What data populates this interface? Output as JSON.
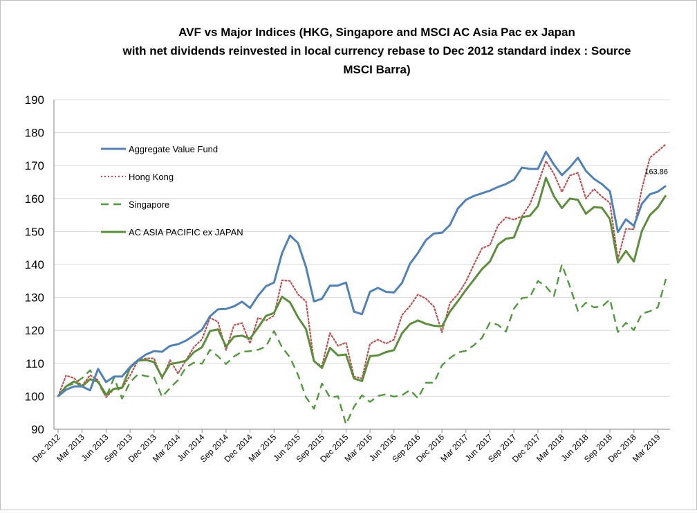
{
  "chart_data": {
    "type": "line",
    "title_lines": [
      "AVF vs Major  Indices (HKG, Singapore and MSCI AC Asia Pac ex Japan",
      "with net dividends reinvested in local currency rebase to Dec 2012 standard  index : Source",
      "MSCI Barra)"
    ],
    "ylim": [
      90,
      190
    ],
    "yticks": [
      90,
      100,
      110,
      120,
      130,
      140,
      150,
      160,
      170,
      180,
      190
    ],
    "grid": "horizontal",
    "legend_position": "upper-left",
    "x": [
      "Dec 2012",
      "Jan 2013",
      "Feb 2013",
      "Mar 2013",
      "Apr 2013",
      "May 2013",
      "Jun 2013",
      "Jul 2013",
      "Aug 2013",
      "Sep 2013",
      "Oct 2013",
      "Nov 2013",
      "Dec 2013",
      "Jan 2014",
      "Feb 2014",
      "Mar 2014",
      "Apr 2014",
      "May 2014",
      "Jun 2014",
      "Jul 2014",
      "Aug 2014",
      "Sep 2014",
      "Oct 2014",
      "Nov 2014",
      "Dec 2014",
      "Jan 2015",
      "Feb 2015",
      "Mar 2015",
      "Apr 2015",
      "May 2015",
      "Jun 2015",
      "Jul 2015",
      "Aug 2015",
      "Sep 2015",
      "Oct 2015",
      "Nov 2015",
      "Dec 2015",
      "Jan 2016",
      "Feb 2016",
      "Mar 2016",
      "Apr 2016",
      "May 2016",
      "Jun 2016",
      "Jul 2016",
      "Aug 2016",
      "Sep 2016",
      "Oct 2016",
      "Nov 2016",
      "Dec 2016",
      "Jan 2017",
      "Feb 2017",
      "Mar 2017",
      "Apr 2017",
      "May 2017",
      "Jun 2017",
      "Jul 2017",
      "Aug 2017",
      "Sep 2017",
      "Oct 2017",
      "Nov 2017",
      "Dec 2017",
      "Jan 2018",
      "Feb 2018",
      "Mar 2018",
      "Apr 2018",
      "May 2018",
      "Jun 2018",
      "Jul 2018",
      "Aug 2018",
      "Sep 2018",
      "Oct 2018",
      "Nov 2018",
      "Dec 2018",
      "Jan 2019",
      "Feb 2019",
      "Mar 2019",
      "Apr 2019"
    ],
    "x_tick_labels": [
      "Dec 2012",
      "Mar 2013",
      "Jun 2013",
      "Sep 2013",
      "Dec 2013",
      "Mar 2014",
      "Jun 2014",
      "Sep 2014",
      "Dec 2014",
      "Mar 2015",
      "Jun 2015",
      "Sep 2015",
      "Dec 2015",
      "Mar 2016",
      "Jun 2016",
      "Sep 2016",
      "Dec 2016",
      "Mar 2017",
      "Jun 2017",
      "Sep 2017",
      "Dec 2017",
      "Mar 2018",
      "Jun 2018",
      "Sep 2018",
      "Dec 2018",
      "Mar 2019"
    ],
    "series": [
      {
        "name": "Aggregate Value Fund",
        "color": "#4f81bd",
        "style": "solid",
        "values": [
          100,
          102,
          103,
          103,
          101.8,
          108.3,
          104.3,
          106,
          106,
          108.9,
          111,
          112.7,
          113.7,
          113.5,
          115.3,
          115.8,
          116.9,
          118.5,
          120.2,
          124.3,
          126.4,
          126.5,
          127.3,
          128.7,
          126.8,
          130.5,
          133.4,
          134.5,
          143.4,
          148.8,
          146.5,
          139.2,
          128.8,
          129.6,
          133.6,
          133.6,
          134.5,
          125.7,
          124.9,
          131.7,
          132.9,
          131.7,
          131.5,
          134.4,
          140.2,
          143.5,
          147.4,
          149.4,
          149.6,
          152,
          157,
          159.6,
          160.8,
          161.6,
          162.4,
          163.5,
          164.4,
          165.7,
          169.4,
          169,
          169,
          174.2,
          170.3,
          167.1,
          169.5,
          172.4,
          168.4,
          166,
          164.4,
          162.2,
          149.8,
          153.7,
          151.7,
          158.4,
          161.3,
          162.1,
          163.86
        ]
      },
      {
        "name": "Hong Kong",
        "color": "#c0504d",
        "style": "dotted",
        "values": [
          100,
          106.3,
          105.5,
          103.2,
          106.4,
          104.9,
          99.7,
          102.2,
          102.4,
          106.3,
          110.9,
          111.5,
          111.5,
          105.3,
          111,
          106.9,
          111,
          115,
          117.3,
          123.8,
          122.6,
          114,
          121.6,
          122.2,
          116,
          123.8,
          123,
          124.5,
          135.2,
          135,
          130.9,
          128.8,
          110.4,
          109.2,
          119.2,
          115.3,
          116.3,
          106,
          105.4,
          115.9,
          117.2,
          116,
          117.2,
          124.6,
          127.4,
          130.9,
          129.6,
          127.2,
          119.4,
          128.3,
          131,
          134.8,
          140,
          144.9,
          145.9,
          151.8,
          154.3,
          153.6,
          154.6,
          158.3,
          164.4,
          171.4,
          167.5,
          162,
          167,
          167.8,
          160,
          162.9,
          160.6,
          158.7,
          141.7,
          150.8,
          150.7,
          163,
          172.4,
          174.4,
          176.5
        ]
      },
      {
        "name": "Singapore",
        "color": "#4f9a3a",
        "style": "dashed",
        "values": [
          100,
          103,
          103.9,
          105.5,
          107.9,
          104.1,
          99.8,
          105.6,
          99.3,
          104.3,
          106.7,
          106.1,
          105.8,
          99.8,
          102.5,
          104.9,
          108.8,
          110.2,
          109.9,
          114.1,
          112.1,
          109.8,
          112.1,
          113.5,
          113.7,
          114.1,
          115.1,
          119.8,
          114.9,
          111.8,
          106.5,
          99.7,
          96.2,
          103.9,
          99.6,
          100,
          91.5,
          96.8,
          100.3,
          98.3,
          100.1,
          100.6,
          99.9,
          100.3,
          101.9,
          99.4,
          104.1,
          104.1,
          109.4,
          111.6,
          113.3,
          113.8,
          115.5,
          117.7,
          122.4,
          121.7,
          119.6,
          126.6,
          129.8,
          130.1,
          135,
          133.3,
          130.4,
          140,
          133.3,
          125.9,
          128.4,
          127,
          127.2,
          129.4,
          119.5,
          122.3,
          120.1,
          125.1,
          125.8,
          127,
          135.6
        ]
      },
      {
        "name": "AC ASIA PACIFIC ex JAPAN",
        "color": "#5b8f3a",
        "style": "solid",
        "values": [
          100,
          103,
          104.5,
          103,
          105.2,
          104.4,
          100.5,
          102.3,
          102.6,
          108.7,
          110.8,
          111,
          110.4,
          105.8,
          109.8,
          110.2,
          110.8,
          113.4,
          114.9,
          119.8,
          120.3,
          115.1,
          118.1,
          118.4,
          117.5,
          120.8,
          124.4,
          125.3,
          130.2,
          128.5,
          124,
          120.4,
          110.7,
          108.6,
          114.7,
          112.4,
          112.7,
          105.4,
          104.6,
          112.2,
          112.4,
          113.4,
          114,
          119.1,
          121.9,
          123,
          122,
          121.4,
          121.2,
          125.7,
          128.9,
          132.3,
          135.4,
          138.6,
          140.9,
          146,
          147.8,
          148.2,
          154.3,
          154.8,
          157.7,
          166.3,
          160.7,
          157.1,
          160,
          159.6,
          155.4,
          157.4,
          157.2,
          153.8,
          140.6,
          144.1,
          140.9,
          150.2,
          155,
          157.3,
          161
        ]
      }
    ],
    "annotations": [
      {
        "series": "Aggregate Value Fund",
        "point": "Apr 2019",
        "text": "163.86"
      }
    ]
  }
}
